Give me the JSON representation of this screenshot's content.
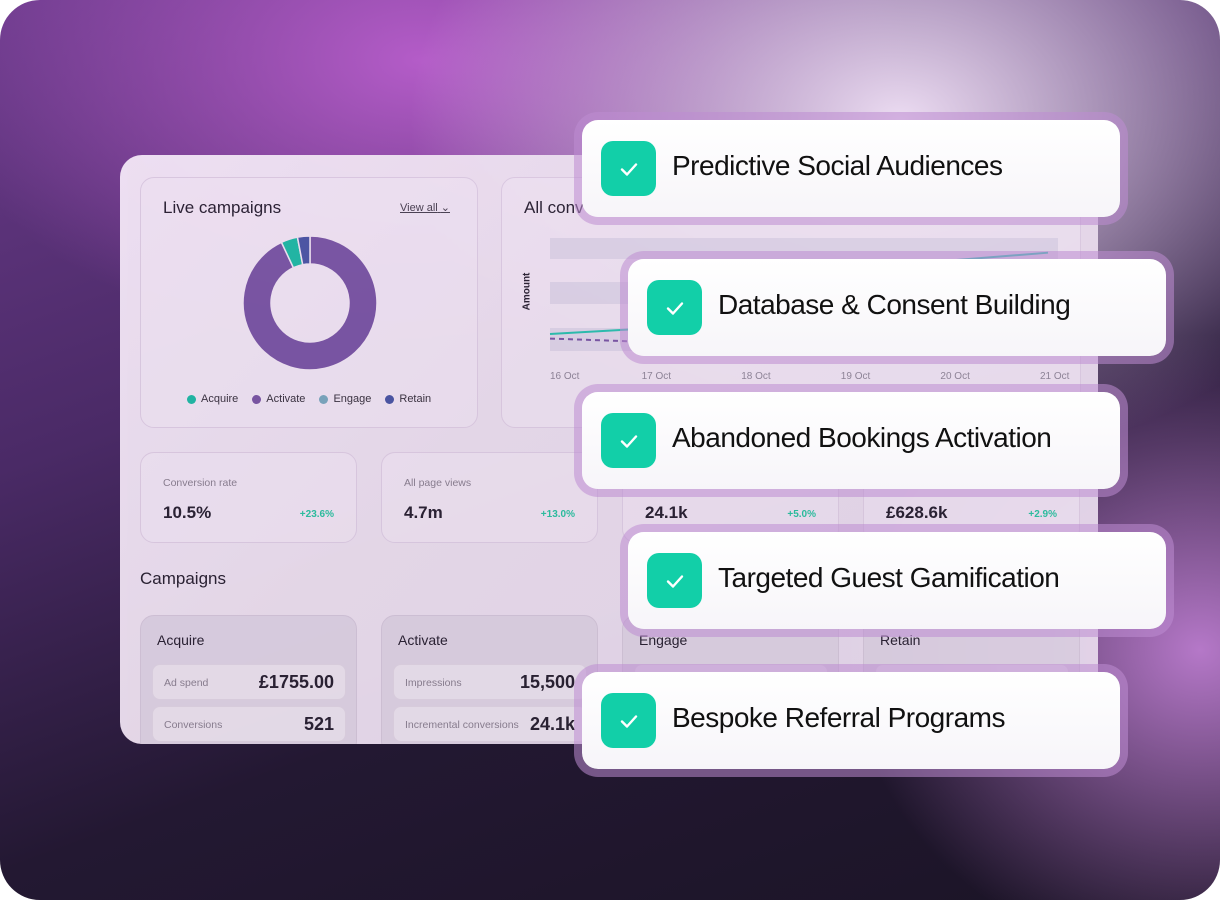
{
  "live_campaigns": {
    "title": "Live campaigns",
    "view_all": "View all",
    "chart_data": {
      "type": "pie",
      "categories": [
        "Acquire",
        "Activate",
        "Engage",
        "Retain"
      ],
      "values": [
        4,
        93,
        0,
        3
      ],
      "colors": [
        "#20b8a4",
        "#7a56a4",
        "#7aa6bd",
        "#4b56a4"
      ]
    }
  },
  "conversions": {
    "title": "All conv",
    "chart_data": {
      "type": "line",
      "xlabel": "",
      "ylabel": "Amount",
      "categories": [
        "16 Oct",
        "17 Oct",
        "18 Oct",
        "19 Oct",
        "20 Oct",
        "21 Oct"
      ],
      "series": [
        {
          "values": [
            15,
            20,
            35,
            55,
            80,
            87
          ],
          "color": "#2bbfae",
          "style": "solid"
        },
        {
          "values": [
            11,
            8,
            8,
            8,
            8,
            8
          ],
          "color": "#7a56a4",
          "style": "dashed"
        }
      ],
      "ylim": [
        0,
        100
      ],
      "grid": true
    }
  },
  "metrics": [
    {
      "label": "Conversion rate",
      "value": "10.5%",
      "delta": "+23.6%"
    },
    {
      "label": "All page views",
      "value": "4.7m",
      "delta": "+13.0%"
    },
    {
      "label": "",
      "value": "24.1k",
      "delta": "+5.0%"
    },
    {
      "label": "",
      "value": "£628.6k",
      "delta": "+2.9%"
    }
  ],
  "campaigns": {
    "heading": "Campaigns",
    "cards": [
      {
        "title": "Acquire",
        "rows": [
          {
            "label": "Ad spend",
            "value": "£1755.00"
          },
          {
            "label": "Conversions",
            "value": "521"
          }
        ]
      },
      {
        "title": "Activate",
        "rows": [
          {
            "label": "Impressions",
            "value": "15,500"
          },
          {
            "label": "Incremental conversions",
            "value": "24.1k"
          }
        ]
      },
      {
        "title": "Engage",
        "rows": []
      },
      {
        "title": "Retain",
        "rows": []
      }
    ]
  },
  "features": [
    "Predictive Social Audiences",
    "Database & Consent Building",
    "Abandoned Bookings Activation",
    "Targeted Guest Gamification",
    "Bespoke Referral Programs"
  ],
  "colors": {
    "check": "#12cfa8",
    "positive": "#2cc0a0"
  }
}
